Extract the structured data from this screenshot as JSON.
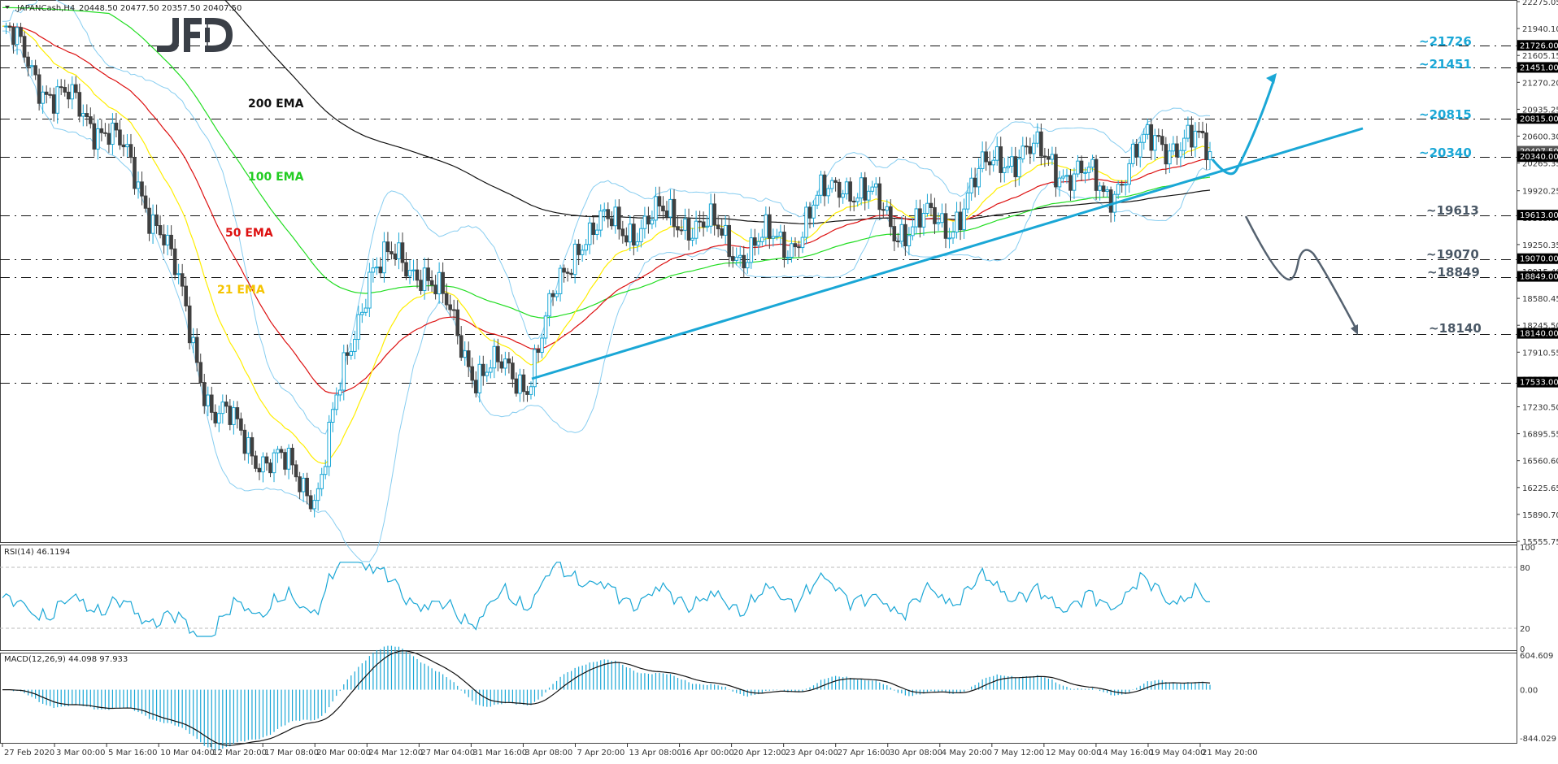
{
  "header": {
    "symbol": ".JAPANCash,H4",
    "ohlc": "20448.50 20477.50 20357.50 20407.50",
    "logo": "JFD"
  },
  "price_axis": {
    "ticks": [
      "22275.05",
      "21940.10",
      "21605.15",
      "21270.20",
      "20935.25",
      "20600.30",
      "20265.35",
      "19920.25",
      "19585.30",
      "19250.35",
      "18915.40",
      "18580.45",
      "18245.50",
      "17910.55",
      "17575.60",
      "17230.50",
      "16895.55",
      "16560.60",
      "16225.65",
      "15890.70",
      "15555.75"
    ],
    "current_price_tag": "20407.50"
  },
  "levels": [
    {
      "value": 21726,
      "tag": "21726.00",
      "label": "~21726",
      "color": "#1aa7d6"
    },
    {
      "value": 21451,
      "tag": "21451.00",
      "label": "~21451",
      "color": "#1aa7d6"
    },
    {
      "value": 20815,
      "tag": "20815.00",
      "label": "~20815",
      "color": "#1aa7d6"
    },
    {
      "value": 20340,
      "tag": "20340.00",
      "label": "~20340",
      "color": "#1aa7d6"
    },
    {
      "value": 19613,
      "tag": "19613.00",
      "label": "~19613",
      "color": "#4a5866"
    },
    {
      "value": 19070,
      "tag": "19070.00",
      "label": "~19070",
      "color": "#4a5866"
    },
    {
      "value": 18849,
      "tag": "18849.00",
      "label": "~18849",
      "color": "#4a5866"
    },
    {
      "value": 18140,
      "tag": "18140.00",
      "label": "~18140",
      "color": "#4a5866"
    },
    {
      "value": 17533,
      "tag": "17533.00",
      "label": "",
      "color": "#4a5866"
    }
  ],
  "ema_labels": [
    {
      "text": "200 EMA",
      "color": "#111111"
    },
    {
      "text": "100 EMA",
      "color": "#22cc22"
    },
    {
      "text": "50 EMA",
      "color": "#dd1111"
    },
    {
      "text": "21 EMA",
      "color": "#f5c400"
    }
  ],
  "rsi": {
    "title": "RSI(14) 46.1194",
    "ticks": [
      "100",
      "80",
      "20",
      "0"
    ]
  },
  "macd": {
    "title": "MACD(12,26,9) 44.098 97.933",
    "ticks": [
      "604.609",
      "0.00",
      "-844.029"
    ]
  },
  "time_axis": {
    "ticks": [
      "27 Feb 2020",
      "3 Mar 00:00",
      "5 Mar 16:00",
      "10 Mar 04:00",
      "12 Mar 20:00",
      "17 Mar 08:00",
      "20 Mar 00:00",
      "24 Mar 12:00",
      "27 Mar 04:00",
      "31 Mar 16:00",
      "3 Apr 08:00",
      "7 Apr 20:00",
      "13 Apr 08:00",
      "16 Apr 00:00",
      "20 Apr 12:00",
      "23 Apr 04:00",
      "27 Apr 16:00",
      "30 Apr 08:00",
      "4 May 20:00",
      "7 May 12:00",
      "12 May 00:00",
      "14 May 16:00",
      "19 May 04:00",
      "21 May 20:00"
    ]
  },
  "colors": {
    "bull": "#1aa7d6",
    "bear": "#404040",
    "bollinger": "#87cdf0",
    "ema21": "#ffee00",
    "ema50": "#dd1111",
    "ema100": "#22dd22",
    "ema200": "#111111",
    "trendline": "#1aa7d6",
    "bull_scenario": "#1aa7d6",
    "bear_scenario": "#556270",
    "rsi_line": "#1aa7d6",
    "macd_hist": "#1aa7d6",
    "macd_signal": "#111111"
  },
  "chart_data": {
    "type": "candlestick",
    "title": ".JAPANCash,H4",
    "subtitle": "O 20448.50 H 20477.50 L 20357.50 C 20407.50",
    "xlabel": "",
    "ylabel": "",
    "ylim": [
      15555.75,
      22275.05
    ],
    "x_ticks": [
      "27 Feb 2020",
      "3 Mar 00:00",
      "5 Mar 16:00",
      "10 Mar 04:00",
      "12 Mar 20:00",
      "17 Mar 08:00",
      "20 Mar 00:00",
      "24 Mar 12:00",
      "27 Mar 04:00",
      "31 Mar 16:00",
      "3 Apr 08:00",
      "7 Apr 20:00",
      "13 Apr 08:00",
      "16 Apr 00:00",
      "20 Apr 12:00",
      "23 Apr 04:00",
      "27 Apr 16:00",
      "30 Apr 08:00",
      "4 May 20:00",
      "7 May 12:00",
      "12 May 00:00",
      "14 May 16:00",
      "19 May 04:00",
      "21 May 20:00"
    ],
    "horizontal_levels": [
      21726,
      21451,
      20815,
      20340,
      19613,
      19070,
      18849,
      18140,
      17533
    ],
    "price_path_approx": [
      {
        "x": "27 Feb 2020",
        "price": 21900
      },
      {
        "x": "3 Mar 00:00",
        "price": 21100
      },
      {
        "x": "5 Mar 16:00",
        "price": 20700
      },
      {
        "x": "10 Mar 04:00",
        "price": 19500
      },
      {
        "x": "12 Mar 20:00",
        "price": 17200
      },
      {
        "x": "17 Mar 08:00",
        "price": 16600
      },
      {
        "x": "20 Mar 00:00",
        "price": 16200
      },
      {
        "x": "24 Mar 12:00",
        "price": 19000
      },
      {
        "x": "27 Mar 04:00",
        "price": 19000
      },
      {
        "x": "31 Mar 16:00",
        "price": 17700
      },
      {
        "x": "3 Apr 08:00",
        "price": 17600
      },
      {
        "x": "7 Apr 20:00",
        "price": 19400
      },
      {
        "x": "13 Apr 08:00",
        "price": 19500
      },
      {
        "x": "16 Apr 00:00",
        "price": 19600
      },
      {
        "x": "20 Apr 12:00",
        "price": 19200
      },
      {
        "x": "23 Apr 04:00",
        "price": 19300
      },
      {
        "x": "27 Apr 16:00",
        "price": 20100
      },
      {
        "x": "30 Apr 08:00",
        "price": 19500
      },
      {
        "x": "4 May 20:00",
        "price": 19500
      },
      {
        "x": "7 May 12:00",
        "price": 20400
      },
      {
        "x": "12 May 00:00",
        "price": 20300
      },
      {
        "x": "14 May 16:00",
        "price": 19900
      },
      {
        "x": "19 May 04:00",
        "price": 20600
      },
      {
        "x": "21 May 20:00",
        "price": 20407.5
      }
    ],
    "indicators": [
      "Bollinger Bands",
      "21 EMA",
      "50 EMA",
      "100 EMA",
      "200 EMA"
    ],
    "annotations": [
      "~21726",
      "~21451",
      "~20815",
      "~20340",
      "~19613",
      "~19070",
      "~18849",
      "~18140",
      "rising trendline from 3 Apr low",
      "bullish scenario arrow to ~21451",
      "bearish scenario arrow to ~18140"
    ],
    "subplots": [
      {
        "name": "RSI(14)",
        "type": "line",
        "last_value": 46.1194,
        "levels": [
          80,
          20
        ],
        "ylim": [
          0,
          100
        ]
      },
      {
        "name": "MACD(12,26,9)",
        "type": "bar+line",
        "macd": 44.098,
        "signal": 97.933,
        "ylim": [
          -844.029,
          604.609
        ]
      }
    ],
    "grid": false,
    "legend": "none"
  }
}
